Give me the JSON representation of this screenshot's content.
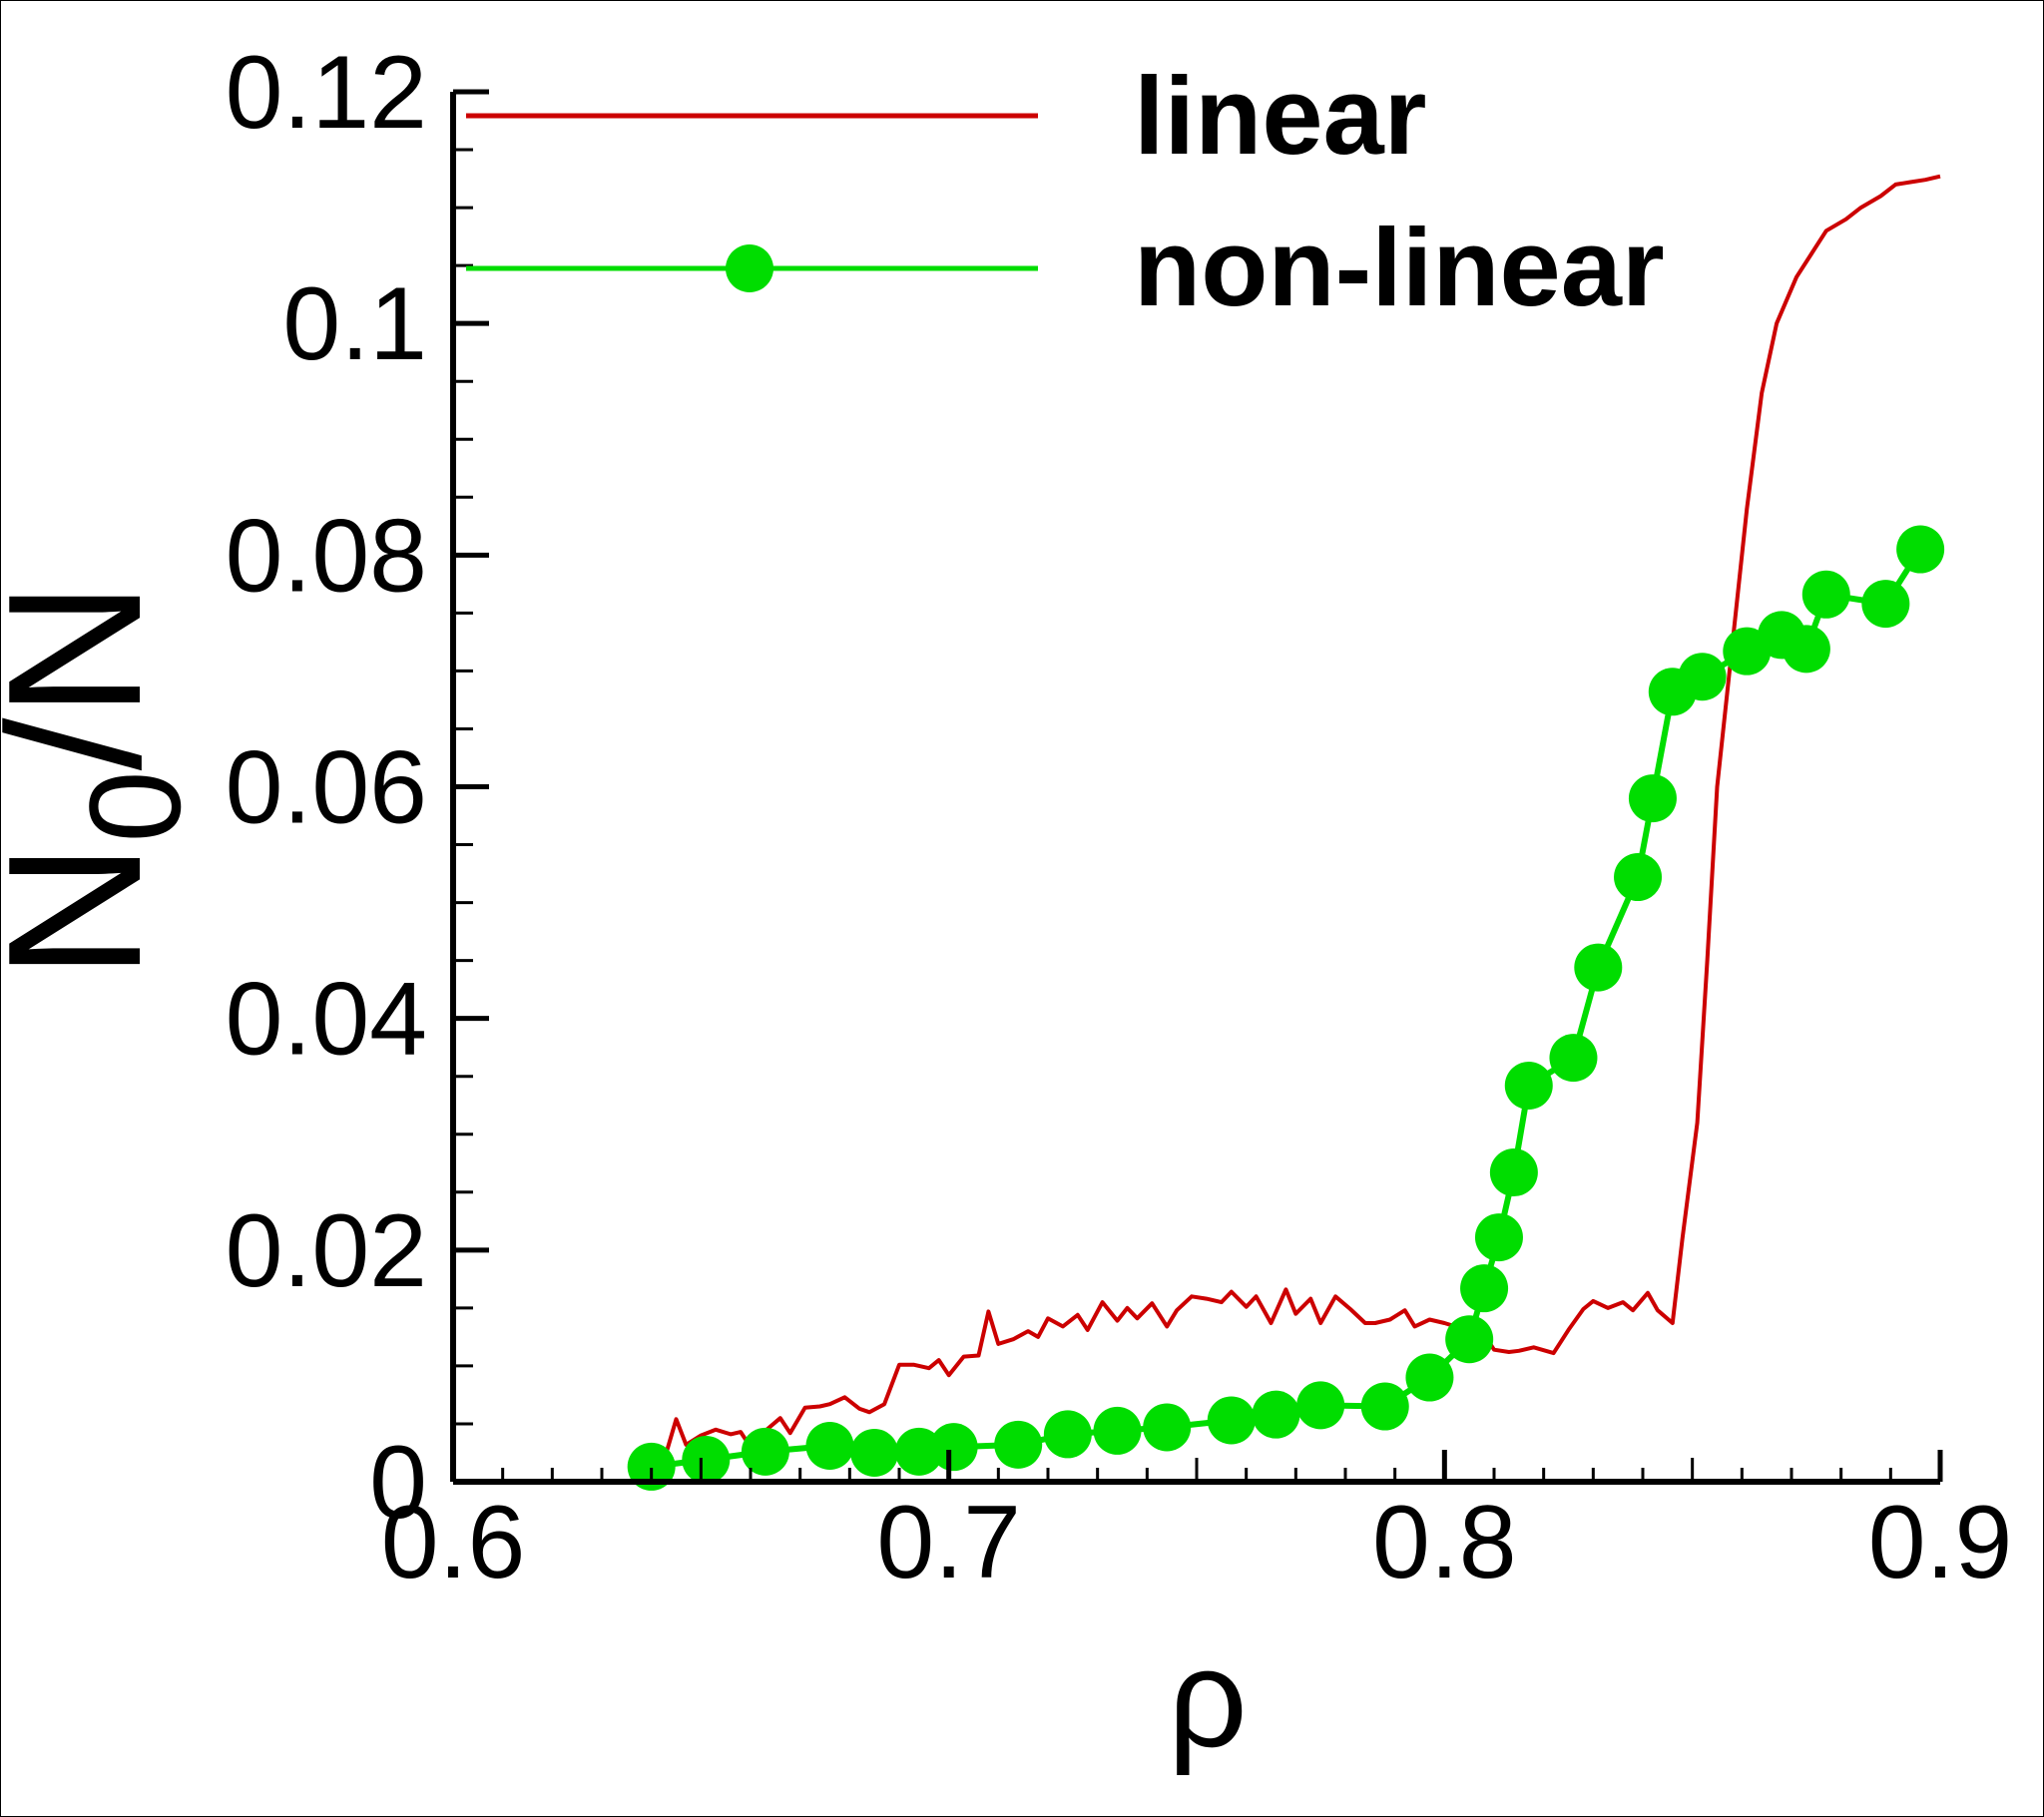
{
  "chart_data": {
    "type": "line",
    "xlabel": "ρ",
    "ylabel": "N",
    "ylabel_sub": "0",
    "ylabel_tail": "/N",
    "xlim": [
      0.6,
      0.9
    ],
    "ylim": [
      0,
      0.12
    ],
    "x_ticks": [
      0.6,
      0.7,
      0.8,
      0.9
    ],
    "x_tick_labels": [
      "0.6",
      "0.7",
      "0.8",
      "0.9"
    ],
    "y_ticks": [
      0,
      0.02,
      0.04,
      0.06,
      0.08,
      0.1,
      0.12
    ],
    "y_tick_labels": [
      "0",
      "0.02",
      "0.04",
      "0.06",
      "0.08",
      "0.1",
      "0.12"
    ],
    "legend_position": "top-right",
    "grid": false,
    "series": [
      {
        "name": "linear",
        "color": "#cc0000",
        "marker": "none",
        "points": [
          [
            0.64,
            0.0014
          ],
          [
            0.643,
            0.0025
          ],
          [
            0.645,
            0.0054
          ],
          [
            0.647,
            0.0032
          ],
          [
            0.65,
            0.004
          ],
          [
            0.653,
            0.0045
          ],
          [
            0.656,
            0.0041
          ],
          [
            0.658,
            0.0043
          ],
          [
            0.66,
            0.003
          ],
          [
            0.663,
            0.0044
          ],
          [
            0.666,
            0.0055
          ],
          [
            0.668,
            0.0042
          ],
          [
            0.671,
            0.0064
          ],
          [
            0.674,
            0.0065
          ],
          [
            0.676,
            0.0067
          ],
          [
            0.679,
            0.0073
          ],
          [
            0.682,
            0.0063
          ],
          [
            0.684,
            0.006
          ],
          [
            0.687,
            0.0067
          ],
          [
            0.69,
            0.0101
          ],
          [
            0.693,
            0.0101
          ],
          [
            0.696,
            0.0098
          ],
          [
            0.698,
            0.0105
          ],
          [
            0.7,
            0.0092
          ],
          [
            0.703,
            0.0108
          ],
          [
            0.706,
            0.0109
          ],
          [
            0.708,
            0.0147
          ],
          [
            0.71,
            0.0119
          ],
          [
            0.713,
            0.0123
          ],
          [
            0.716,
            0.013
          ],
          [
            0.718,
            0.0125
          ],
          [
            0.72,
            0.0141
          ],
          [
            0.723,
            0.0134
          ],
          [
            0.726,
            0.0144
          ],
          [
            0.728,
            0.0131
          ],
          [
            0.731,
            0.0155
          ],
          [
            0.734,
            0.0139
          ],
          [
            0.736,
            0.015
          ],
          [
            0.738,
            0.0141
          ],
          [
            0.741,
            0.0154
          ],
          [
            0.744,
            0.0134
          ],
          [
            0.746,
            0.0148
          ],
          [
            0.749,
            0.016
          ],
          [
            0.752,
            0.0158
          ],
          [
            0.755,
            0.0155
          ],
          [
            0.757,
            0.0164
          ],
          [
            0.76,
            0.0151
          ],
          [
            0.762,
            0.016
          ],
          [
            0.765,
            0.0137
          ],
          [
            0.768,
            0.0166
          ],
          [
            0.77,
            0.0145
          ],
          [
            0.773,
            0.0158
          ],
          [
            0.775,
            0.0137
          ],
          [
            0.778,
            0.016
          ],
          [
            0.781,
            0.0149
          ],
          [
            0.784,
            0.0137
          ],
          [
            0.786,
            0.0137
          ],
          [
            0.789,
            0.014
          ],
          [
            0.792,
            0.0148
          ],
          [
            0.794,
            0.0134
          ],
          [
            0.797,
            0.014
          ],
          [
            0.8,
            0.0137
          ],
          [
            0.803,
            0.0133
          ],
          [
            0.805,
            0.0124
          ],
          [
            0.808,
            0.0127
          ],
          [
            0.81,
            0.0114
          ],
          [
            0.813,
            0.0112
          ],
          [
            0.815,
            0.0113
          ],
          [
            0.818,
            0.0116
          ],
          [
            0.822,
            0.0111
          ],
          [
            0.825,
            0.0131
          ],
          [
            0.828,
            0.0149
          ],
          [
            0.83,
            0.0156
          ],
          [
            0.833,
            0.015
          ],
          [
            0.836,
            0.0155
          ],
          [
            0.838,
            0.0148
          ],
          [
            0.841,
            0.0163
          ],
          [
            0.843,
            0.0148
          ],
          [
            0.846,
            0.0137
          ],
          [
            0.848,
            0.021
          ],
          [
            0.851,
            0.031
          ],
          [
            0.853,
            0.045
          ],
          [
            0.855,
            0.06
          ],
          [
            0.858,
            0.072
          ],
          [
            0.861,
            0.084
          ],
          [
            0.864,
            0.094
          ],
          [
            0.867,
            0.1
          ],
          [
            0.871,
            0.104
          ],
          [
            0.874,
            0.106
          ],
          [
            0.877,
            0.108
          ],
          [
            0.881,
            0.109
          ],
          [
            0.884,
            0.11
          ],
          [
            0.888,
            0.111
          ],
          [
            0.891,
            0.112
          ],
          [
            0.894,
            0.1122
          ],
          [
            0.897,
            0.1124
          ],
          [
            0.9,
            0.1127
          ]
        ]
      },
      {
        "name": "non-linear",
        "color": "#00dd00",
        "marker": "circle",
        "points": [
          [
            0.64,
            0.0013
          ],
          [
            0.651,
            0.0019
          ],
          [
            0.663,
            0.0026
          ],
          [
            0.676,
            0.0031
          ],
          [
            0.685,
            0.0025
          ],
          [
            0.694,
            0.0026
          ],
          [
            0.701,
            0.003
          ],
          [
            0.714,
            0.0032
          ],
          [
            0.724,
            0.0041
          ],
          [
            0.734,
            0.0044
          ],
          [
            0.744,
            0.0047
          ],
          [
            0.757,
            0.0053
          ],
          [
            0.766,
            0.0058
          ],
          [
            0.775,
            0.0066
          ],
          [
            0.788,
            0.0065
          ],
          [
            0.797,
            0.009
          ],
          [
            0.805,
            0.0123
          ],
          [
            0.808,
            0.0167
          ],
          [
            0.811,
            0.0211
          ],
          [
            0.814,
            0.0267
          ],
          [
            0.817,
            0.0342
          ],
          [
            0.826,
            0.0366
          ],
          [
            0.831,
            0.0444
          ],
          [
            0.839,
            0.0522
          ],
          [
            0.842,
            0.059
          ],
          [
            0.846,
            0.0682
          ],
          [
            0.852,
            0.0695
          ],
          [
            0.861,
            0.0717
          ],
          [
            0.868,
            0.0731
          ],
          [
            0.873,
            0.0719
          ],
          [
            0.877,
            0.0766
          ],
          [
            0.889,
            0.0758
          ],
          [
            0.896,
            0.0805
          ]
        ]
      }
    ]
  }
}
